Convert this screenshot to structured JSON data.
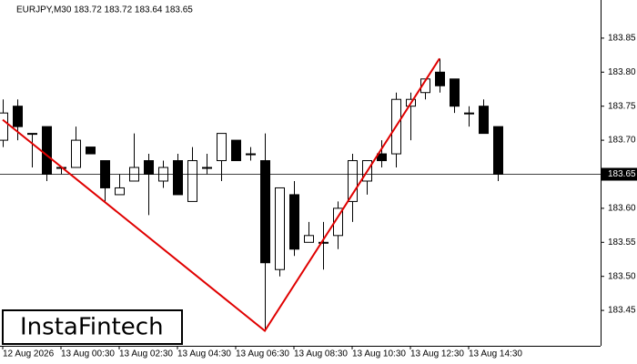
{
  "chart_data": {
    "type": "candlestick",
    "title": "EURJPY,M30  183.72 183.72 183.64 183.65",
    "watermark": "InstaFintech",
    "categories": [
      "12 Aug 2026",
      null,
      null,
      null,
      "13 Aug 00:30",
      null,
      null,
      null,
      "13 Aug 02:30",
      null,
      null,
      null,
      "13 Aug 04:30",
      null,
      null,
      null,
      "13 Aug 06:30",
      null,
      null,
      null,
      "13 Aug 08:30",
      null,
      null,
      null,
      "13 Aug 10:30",
      null,
      null,
      null,
      "13 Aug 12:30",
      null,
      null,
      null,
      "13 Aug 14:30",
      null,
      null
    ],
    "open": [
      183.7,
      183.75,
      183.71,
      183.72,
      183.66,
      183.66,
      183.69,
      183.67,
      183.62,
      183.64,
      183.67,
      183.64,
      183.67,
      183.61,
      183.66,
      183.67,
      183.7,
      183.68,
      183.67,
      183.51,
      183.62,
      183.55,
      183.55,
      183.56,
      183.61,
      183.64,
      183.68,
      183.68,
      183.75,
      183.77,
      183.8,
      183.79,
      183.74,
      183.75,
      183.72
    ],
    "high": [
      183.76,
      183.76,
      183.71,
      183.72,
      183.66,
      183.72,
      183.69,
      183.67,
      183.65,
      183.71,
      183.68,
      183.67,
      183.68,
      183.69,
      183.68,
      183.71,
      183.7,
      183.69,
      183.71,
      183.63,
      183.64,
      183.58,
      183.58,
      183.61,
      183.68,
      183.67,
      183.7,
      183.77,
      183.77,
      183.79,
      183.82,
      183.79,
      183.75,
      183.76,
      183.72
    ],
    "low": [
      183.69,
      183.7,
      183.66,
      183.64,
      183.65,
      183.66,
      183.68,
      183.61,
      183.62,
      183.64,
      183.59,
      183.63,
      183.62,
      183.61,
      183.65,
      183.64,
      183.67,
      183.67,
      183.42,
      183.5,
      183.53,
      183.55,
      183.51,
      183.54,
      183.58,
      183.62,
      183.66,
      183.66,
      183.7,
      183.76,
      183.77,
      183.74,
      183.72,
      183.71,
      183.64
    ],
    "close": [
      183.74,
      183.72,
      183.71,
      183.65,
      183.66,
      183.7,
      183.68,
      183.63,
      183.63,
      183.66,
      183.65,
      183.66,
      183.62,
      183.67,
      183.66,
      183.71,
      183.67,
      183.68,
      183.52,
      183.63,
      183.54,
      183.56,
      183.55,
      183.6,
      183.67,
      183.67,
      183.67,
      183.76,
      183.76,
      183.79,
      183.78,
      183.75,
      183.74,
      183.71,
      183.65
    ],
    "up_color": "#ffffff",
    "down_color": "#000000",
    "pattern": {
      "color": "#e00000",
      "x": [
        0,
        18,
        30
      ],
      "values": [
        183.73,
        183.42,
        183.82
      ]
    },
    "last_price": 183.65,
    "ylim": [
      183.398,
      183.906
    ],
    "yticks": [
      183.45,
      {
        "value": 183.5,
        "label": "183.50"
      },
      183.55,
      {
        "value": 183.6,
        "label": "183.60"
      },
      183.65,
      {
        "value": 183.7,
        "label": "183.70"
      },
      183.75,
      {
        "value": 183.8,
        "label": "183.80"
      },
      183.85
    ]
  }
}
